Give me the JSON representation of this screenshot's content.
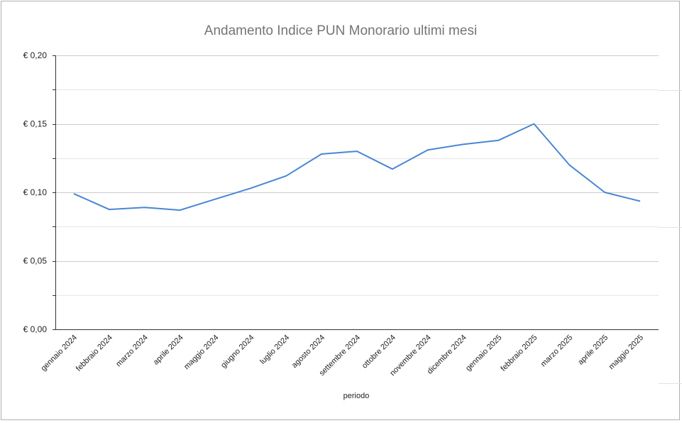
{
  "chart_data": {
    "type": "line",
    "title": "Andamento Indice PUN Monorario ultimi mesi",
    "xlabel": "periodo",
    "ylabel": "",
    "categories": [
      "gennaio 2024",
      "febbraio 2024",
      "marzo 2024",
      "aprile 2024",
      "maggio 2024",
      "giugno 2024",
      "luglio 2024",
      "agosto 2024",
      "settembre 2024",
      "ottobre 2024",
      "novembre 2024",
      "dicembre 2024",
      "gennaio 2025",
      "febbraio 2025",
      "marzo 2025",
      "aprile 2025",
      "maggio 2025"
    ],
    "series": [
      {
        "name": "",
        "values": [
          0.099,
          0.0875,
          0.089,
          0.087,
          0.095,
          0.103,
          0.112,
          0.128,
          0.13,
          0.117,
          0.131,
          0.135,
          0.138,
          0.15,
          0.12,
          0.1,
          0.0935
        ]
      }
    ],
    "ylim": [
      0,
      0.2
    ],
    "yticks": [
      0,
      0.05,
      0.1,
      0.15,
      0.2
    ],
    "ytick_labels": [
      "€ 0,00",
      "€ 0,05",
      "€ 0,10",
      "€ 0,15",
      "€ 0,20"
    ],
    "grid": true,
    "legend": "none",
    "line_color": "#4a86d4"
  }
}
